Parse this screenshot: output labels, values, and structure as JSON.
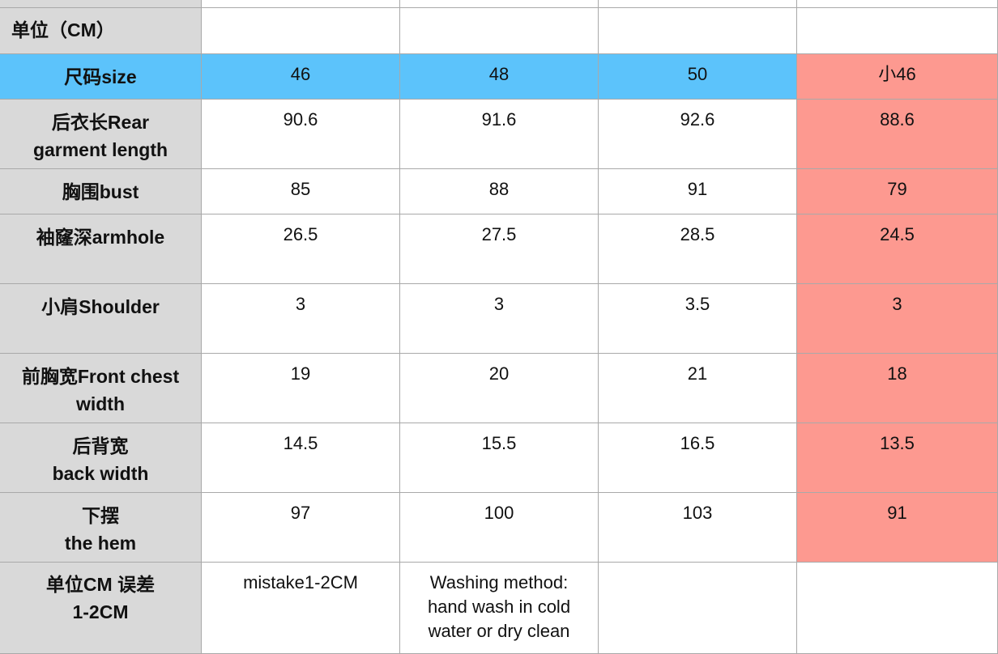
{
  "unit_label": "单位（CM）",
  "sizes_row": {
    "label": "尺码size",
    "values": [
      "46",
      "48",
      "50",
      "小46"
    ]
  },
  "rows": [
    {
      "label_lines": [
        "后衣长Rear",
        "garment length"
      ],
      "values": [
        "90.6",
        "91.6",
        "92.6",
        "88.6"
      ]
    },
    {
      "label_lines": [
        "胸围bust"
      ],
      "values": [
        "85",
        "88",
        "91",
        "79"
      ]
    },
    {
      "label_lines": [
        "袖窿深armhole"
      ],
      "values": [
        "26.5",
        "27.5",
        "28.5",
        "24.5"
      ]
    },
    {
      "label_lines": [
        "小肩Shoulder"
      ],
      "values": [
        "3",
        "3",
        "3.5",
        "3"
      ]
    },
    {
      "label_lines": [
        "前胸宽Front chest",
        "width"
      ],
      "values": [
        "19",
        "20",
        "21",
        "18"
      ]
    },
    {
      "label_lines": [
        "后背宽",
        "back width"
      ],
      "values": [
        "14.5",
        "15.5",
        "16.5",
        "13.5"
      ]
    },
    {
      "label_lines": [
        "下摆",
        "the hem"
      ],
      "values": [
        "97",
        "100",
        "103",
        "91"
      ]
    }
  ],
  "footer": {
    "label_lines": [
      "单位CM 误差",
      "1-2CM"
    ],
    "note1": "mistake1-2CM",
    "note2_lines": [
      "Washing method:",
      "hand wash in cold",
      "water or dry clean"
    ]
  },
  "colors": {
    "header_gray": "#d9d9d9",
    "size_row_blue": "#5cc3fb",
    "highlight_red": "#fd9990",
    "grid": "#a9a9a9"
  }
}
